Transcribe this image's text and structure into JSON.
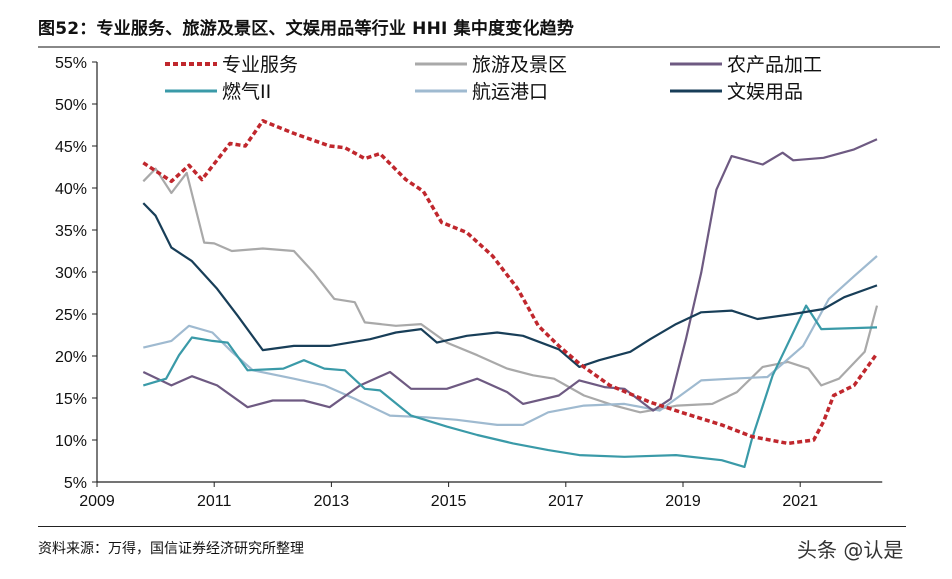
{
  "title": "图52：专业服务、旅游及景区、文娱用品等行业 HHI 集中度变化趋势",
  "source": "资料来源：万得，国信证券经济研究所整理",
  "watermark": "头条 @认是",
  "chart_data": {
    "type": "line",
    "title": "图52：专业服务、旅游及景区、文娱用品等行业 HHI 集中度变化趋势",
    "xlabel": "",
    "ylabel": "",
    "xlim": [
      2009,
      2022.4
    ],
    "ylim": [
      5,
      55
    ],
    "x_ticks": [
      "2009",
      "2011",
      "2013",
      "2015",
      "2017",
      "2019",
      "2021"
    ],
    "y_ticks": [
      "5%",
      "10%",
      "15%",
      "20%",
      "25%",
      "30%",
      "35%",
      "40%",
      "45%",
      "50%",
      "55%"
    ],
    "grid": false,
    "legend_position": "top",
    "series": [
      {
        "name": "专业服务",
        "color": "#c0272d",
        "style": "dashed",
        "points": [
          [
            2009.79,
            43.0
          ],
          [
            2010.27,
            40.8
          ],
          [
            2010.57,
            42.7
          ],
          [
            2010.79,
            41.0
          ],
          [
            2011.27,
            45.3
          ],
          [
            2011.53,
            45.0
          ],
          [
            2011.83,
            48.0
          ],
          [
            2012.36,
            46.5
          ],
          [
            2012.97,
            45.0
          ],
          [
            2013.23,
            44.8
          ],
          [
            2013.57,
            43.5
          ],
          [
            2013.83,
            44.1
          ],
          [
            2014.27,
            41.0
          ],
          [
            2014.57,
            39.6
          ],
          [
            2014.88,
            35.9
          ],
          [
            2015.31,
            34.7
          ],
          [
            2015.75,
            31.9
          ],
          [
            2016.18,
            28.0
          ],
          [
            2016.53,
            23.6
          ],
          [
            2016.88,
            21.2
          ],
          [
            2017.23,
            19.1
          ],
          [
            2017.75,
            16.5
          ],
          [
            2018.44,
            14.5
          ],
          [
            2018.97,
            13.3
          ],
          [
            2019.66,
            11.8
          ],
          [
            2020.18,
            10.4
          ],
          [
            2020.79,
            9.6
          ],
          [
            2021.23,
            10.0
          ],
          [
            2021.4,
            12.2
          ],
          [
            2021.57,
            15.3
          ],
          [
            2021.92,
            16.5
          ],
          [
            2022.31,
            20.3
          ]
        ]
      },
      {
        "name": "旅游及景区",
        "color": "#a9a9a9",
        "style": "solid",
        "points": [
          [
            2009.79,
            40.8
          ],
          [
            2010.0,
            42.3
          ],
          [
            2010.27,
            39.4
          ],
          [
            2010.53,
            41.8
          ],
          [
            2010.7,
            37.1
          ],
          [
            2010.83,
            33.5
          ],
          [
            2011.0,
            33.4
          ],
          [
            2011.3,
            32.5
          ],
          [
            2011.83,
            32.8
          ],
          [
            2012.36,
            32.5
          ],
          [
            2012.7,
            29.9
          ],
          [
            2013.05,
            26.8
          ],
          [
            2013.4,
            26.4
          ],
          [
            2013.57,
            24.0
          ],
          [
            2014.1,
            23.6
          ],
          [
            2014.53,
            23.8
          ],
          [
            2014.97,
            21.6
          ],
          [
            2015.49,
            20.1
          ],
          [
            2016.0,
            18.5
          ],
          [
            2016.44,
            17.7
          ],
          [
            2016.8,
            17.3
          ],
          [
            2017.31,
            15.3
          ],
          [
            2017.83,
            14.1
          ],
          [
            2018.27,
            13.3
          ],
          [
            2018.6,
            13.7
          ],
          [
            2018.9,
            14.1
          ],
          [
            2019.5,
            14.3
          ],
          [
            2019.92,
            15.7
          ],
          [
            2020.36,
            18.7
          ],
          [
            2020.79,
            19.3
          ],
          [
            2021.14,
            18.5
          ],
          [
            2021.36,
            16.5
          ],
          [
            2021.66,
            17.3
          ],
          [
            2022.1,
            20.5
          ],
          [
            2022.31,
            26.0
          ]
        ]
      },
      {
        "name": "农产品加工",
        "color": "#6e5a82",
        "style": "solid",
        "points": [
          [
            2009.79,
            18.1
          ],
          [
            2010.27,
            16.5
          ],
          [
            2010.62,
            17.6
          ],
          [
            2011.05,
            16.5
          ],
          [
            2011.57,
            13.9
          ],
          [
            2012.0,
            14.7
          ],
          [
            2012.53,
            14.7
          ],
          [
            2012.97,
            13.9
          ],
          [
            2013.49,
            16.5
          ],
          [
            2014.0,
            18.1
          ],
          [
            2014.36,
            16.1
          ],
          [
            2014.97,
            16.1
          ],
          [
            2015.49,
            17.3
          ],
          [
            2016.0,
            15.7
          ],
          [
            2016.27,
            14.3
          ],
          [
            2016.88,
            15.3
          ],
          [
            2017.23,
            17.1
          ],
          [
            2017.66,
            16.3
          ],
          [
            2018.0,
            16.1
          ],
          [
            2018.49,
            13.5
          ],
          [
            2018.79,
            14.9
          ],
          [
            2019.05,
            22.0
          ],
          [
            2019.31,
            29.9
          ],
          [
            2019.57,
            39.8
          ],
          [
            2019.83,
            43.8
          ],
          [
            2020.36,
            42.8
          ],
          [
            2020.7,
            44.2
          ],
          [
            2020.88,
            43.3
          ],
          [
            2021.4,
            43.6
          ],
          [
            2021.92,
            44.6
          ],
          [
            2022.31,
            45.8
          ]
        ]
      },
      {
        "name": "燃气II",
        "color": "#3a9aa8",
        "style": "solid",
        "points": [
          [
            2009.79,
            16.5
          ],
          [
            2010.18,
            17.3
          ],
          [
            2010.4,
            20.1
          ],
          [
            2010.62,
            22.2
          ],
          [
            2010.97,
            21.8
          ],
          [
            2011.23,
            21.6
          ],
          [
            2011.57,
            18.3
          ],
          [
            2012.18,
            18.5
          ],
          [
            2012.53,
            19.5
          ],
          [
            2012.88,
            18.5
          ],
          [
            2013.23,
            18.3
          ],
          [
            2013.57,
            16.1
          ],
          [
            2013.83,
            15.9
          ],
          [
            2014.36,
            12.9
          ],
          [
            2014.97,
            11.6
          ],
          [
            2015.49,
            10.6
          ],
          [
            2016.1,
            9.6
          ],
          [
            2016.7,
            8.8
          ],
          [
            2017.23,
            8.2
          ],
          [
            2018.0,
            8.0
          ],
          [
            2018.88,
            8.2
          ],
          [
            2019.66,
            7.6
          ],
          [
            2020.05,
            6.8
          ],
          [
            2020.18,
            10.2
          ],
          [
            2020.53,
            17.7
          ],
          [
            2021.1,
            26.0
          ],
          [
            2021.36,
            23.2
          ],
          [
            2022.31,
            23.4
          ]
        ]
      },
      {
        "name": "航运港口",
        "color": "#9fbad0",
        "style": "solid",
        "points": [
          [
            2009.79,
            21.0
          ],
          [
            2010.27,
            21.8
          ],
          [
            2010.57,
            23.6
          ],
          [
            2010.97,
            22.8
          ],
          [
            2011.3,
            20.5
          ],
          [
            2011.66,
            18.3
          ],
          [
            2012.36,
            17.3
          ],
          [
            2012.88,
            16.5
          ],
          [
            2013.4,
            14.9
          ],
          [
            2014.0,
            12.9
          ],
          [
            2014.62,
            12.7
          ],
          [
            2015.14,
            12.4
          ],
          [
            2015.83,
            11.8
          ],
          [
            2016.27,
            11.8
          ],
          [
            2016.7,
            13.3
          ],
          [
            2017.31,
            14.1
          ],
          [
            2018.0,
            14.3
          ],
          [
            2018.6,
            13.5
          ],
          [
            2019.31,
            17.1
          ],
          [
            2019.83,
            17.3
          ],
          [
            2020.44,
            17.5
          ],
          [
            2021.05,
            21.2
          ],
          [
            2021.49,
            26.8
          ],
          [
            2021.92,
            29.5
          ],
          [
            2022.31,
            31.9
          ]
        ]
      },
      {
        "name": "文娱用品",
        "color": "#183e58",
        "style": "solid",
        "points": [
          [
            2009.79,
            38.2
          ],
          [
            2010.0,
            36.7
          ],
          [
            2010.27,
            32.9
          ],
          [
            2010.62,
            31.3
          ],
          [
            2011.05,
            28.0
          ],
          [
            2011.4,
            24.8
          ],
          [
            2011.83,
            20.7
          ],
          [
            2012.36,
            21.2
          ],
          [
            2012.97,
            21.2
          ],
          [
            2013.66,
            22.0
          ],
          [
            2014.1,
            22.8
          ],
          [
            2014.53,
            23.2
          ],
          [
            2014.8,
            21.6
          ],
          [
            2015.31,
            22.4
          ],
          [
            2015.83,
            22.8
          ],
          [
            2016.27,
            22.4
          ],
          [
            2016.88,
            20.8
          ],
          [
            2017.23,
            18.7
          ],
          [
            2017.57,
            19.5
          ],
          [
            2018.1,
            20.5
          ],
          [
            2018.44,
            22.0
          ],
          [
            2018.88,
            23.8
          ],
          [
            2019.31,
            25.2
          ],
          [
            2019.83,
            25.4
          ],
          [
            2020.27,
            24.4
          ],
          [
            2020.88,
            25.0
          ],
          [
            2021.4,
            25.6
          ],
          [
            2021.75,
            27.0
          ],
          [
            2022.31,
            28.4
          ]
        ]
      }
    ]
  }
}
